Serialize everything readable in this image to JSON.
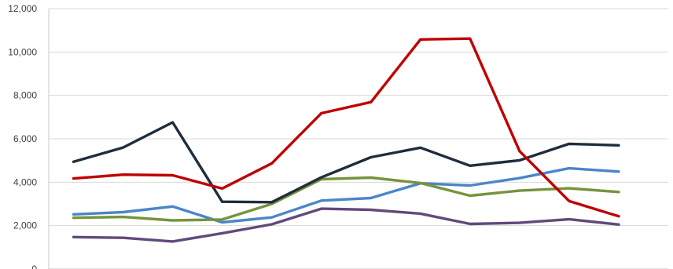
{
  "chart_data": {
    "type": "line",
    "x": [
      1,
      2,
      3,
      4,
      5,
      6,
      7,
      8,
      9,
      10,
      11,
      12,
      13
    ],
    "ylim": [
      0,
      12000
    ],
    "y_ticks": [
      0,
      2000,
      4000,
      6000,
      8000,
      10000,
      12000
    ],
    "y_tick_labels": [
      "0",
      "2,000",
      "4,000",
      "6,000",
      "8,000",
      "10,000",
      "12,000"
    ],
    "grid": true,
    "legend": "none",
    "title": "",
    "xlabel": "",
    "ylabel": "",
    "series": [
      {
        "color": "#4a86c8",
        "values": [
          2520,
          2620,
          2880,
          2150,
          2380,
          3150,
          3270,
          3950,
          3850,
          4190,
          4640,
          4490,
          null
        ]
      },
      {
        "color": "#77933c",
        "values": [
          2360,
          2400,
          2240,
          2280,
          3000,
          4140,
          4210,
          3960,
          3380,
          3610,
          3720,
          3550,
          null
        ]
      },
      {
        "color": "#604a7b",
        "values": [
          1470,
          1440,
          1270,
          1650,
          2060,
          2780,
          2730,
          2550,
          2080,
          2130,
          2290,
          2050,
          null
        ]
      },
      {
        "color": "#1f2d3d",
        "values": [
          4940,
          5600,
          6760,
          3100,
          3080,
          4220,
          5150,
          5590,
          4760,
          5010,
          5770,
          5700,
          null
        ]
      },
      {
        "color": "#c00000",
        "values": [
          4170,
          4350,
          4320,
          3710,
          4870,
          7180,
          7690,
          10580,
          10620,
          5430,
          3130,
          2430,
          null
        ]
      }
    ]
  }
}
